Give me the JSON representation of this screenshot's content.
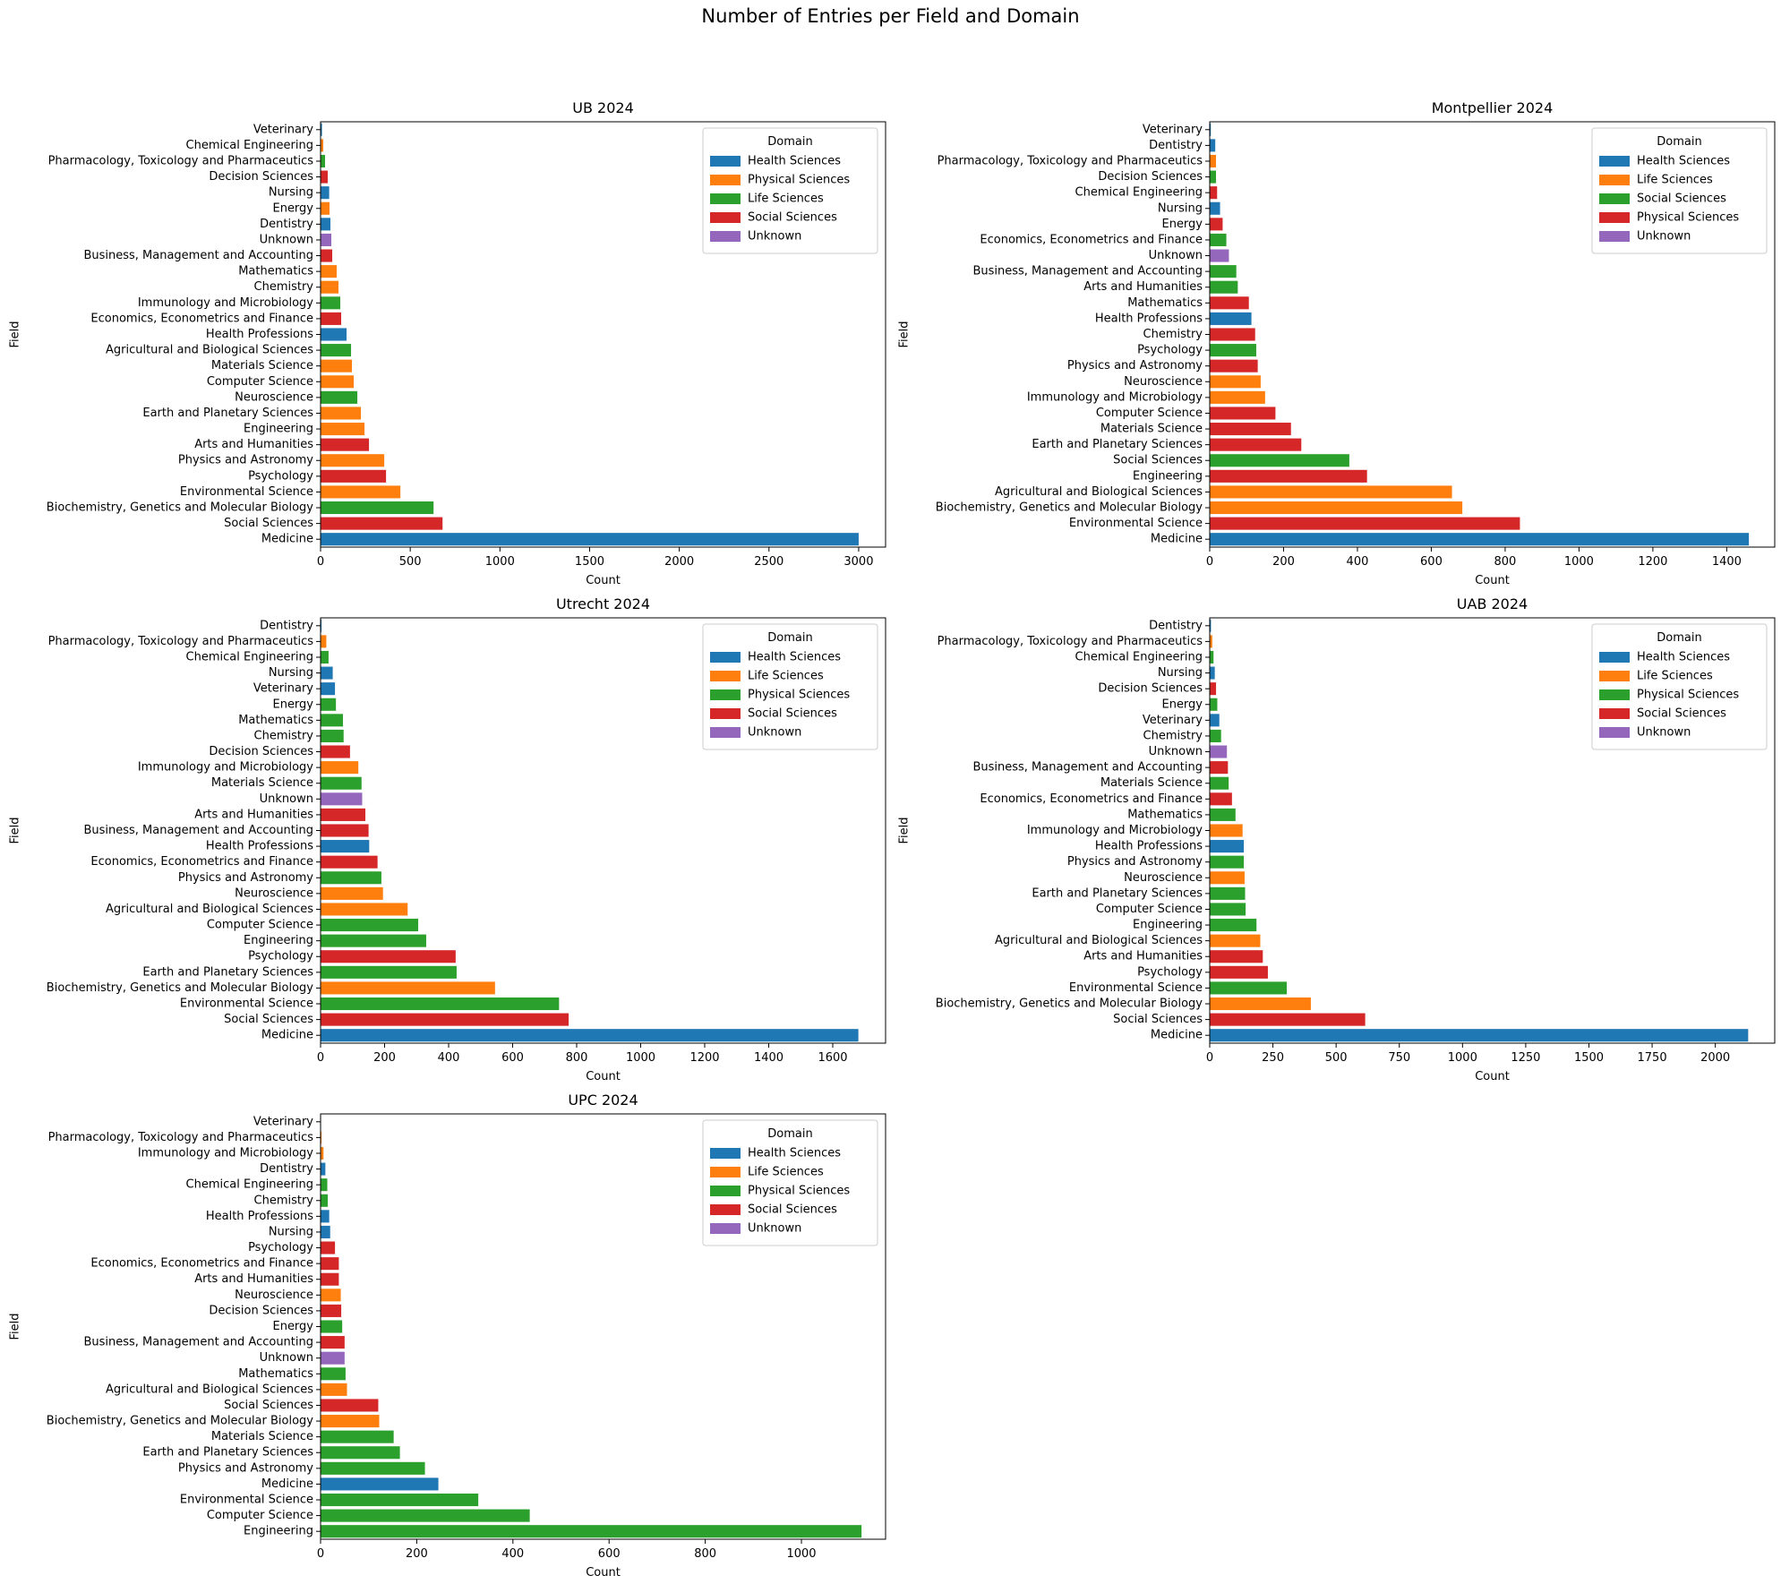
{
  "suptitle": "Number of Entries per Field and Domain",
  "domain_colors": {
    "Health Sciences": "#1f77b4",
    "Physical Sciences": "#ff7f0e",
    "Life Sciences": "#2ca02c",
    "Social Sciences": "#d62728",
    "Unknown": "#9467bd"
  },
  "colors_by_chart": [
    {
      "Health Sciences": "#1f77b4",
      "Physical Sciences": "#ff7f0e",
      "Life Sciences": "#2ca02c",
      "Social Sciences": "#d62728",
      "Unknown": "#9467bd"
    },
    {
      "Health Sciences": "#1f77b4",
      "Life Sciences": "#ff7f0e",
      "Social Sciences": "#2ca02c",
      "Physical Sciences": "#d62728",
      "Unknown": "#9467bd"
    },
    {
      "Health Sciences": "#1f77b4",
      "Life Sciences": "#ff7f0e",
      "Physical Sciences": "#2ca02c",
      "Social Sciences": "#d62728",
      "Unknown": "#9467bd"
    },
    {
      "Health Sciences": "#1f77b4",
      "Life Sciences": "#ff7f0e",
      "Physical Sciences": "#2ca02c",
      "Social Sciences": "#d62728",
      "Unknown": "#9467bd"
    },
    {
      "Health Sciences": "#1f77b4",
      "Life Sciences": "#ff7f0e",
      "Physical Sciences": "#2ca02c",
      "Social Sciences": "#d62728",
      "Unknown": "#9467bd"
    }
  ],
  "chart_data": [
    {
      "type": "bar",
      "orientation": "horizontal",
      "title": "UB 2024",
      "xlabel": "Count",
      "ylabel": "Field",
      "xlim": [
        0,
        3150
      ],
      "xticks": [
        0,
        500,
        1000,
        1500,
        2000,
        2500,
        3000
      ],
      "legend_title": "Domain",
      "legend_placement": "top-right",
      "legend": [
        "Health Sciences",
        "Physical Sciences",
        "Life Sciences",
        "Social Sciences",
        "Unknown"
      ],
      "categories": [
        "Veterinary",
        "Chemical Engineering",
        "Pharmacology, Toxicology and Pharmaceutics",
        "Decision Sciences",
        "Nursing",
        "Energy",
        "Dentistry",
        "Unknown",
        "Business, Management and Accounting",
        "Mathematics",
        "Chemistry",
        "Immunology and Microbiology",
        "Economics, Econometrics and Finance",
        "Health Professions",
        "Agricultural and Biological Sciences",
        "Materials Science",
        "Computer Science",
        "Neuroscience",
        "Earth and Planetary Sciences",
        "Engineering",
        "Arts and Humanities",
        "Physics and Astronomy",
        "Psychology",
        "Environmental Science",
        "Biochemistry, Genetics and Molecular Biology",
        "Social Sciences",
        "Medicine"
      ],
      "values": [
        8,
        15,
        25,
        40,
        48,
        50,
        55,
        60,
        65,
        90,
        100,
        110,
        115,
        145,
        170,
        175,
        185,
        205,
        225,
        245,
        270,
        355,
        365,
        445,
        630,
        680,
        3000
      ],
      "domains": [
        "Health Sciences",
        "Physical Sciences",
        "Life Sciences",
        "Social Sciences",
        "Health Sciences",
        "Physical Sciences",
        "Health Sciences",
        "Unknown",
        "Social Sciences",
        "Physical Sciences",
        "Physical Sciences",
        "Life Sciences",
        "Social Sciences",
        "Health Sciences",
        "Life Sciences",
        "Physical Sciences",
        "Physical Sciences",
        "Life Sciences",
        "Physical Sciences",
        "Physical Sciences",
        "Social Sciences",
        "Physical Sciences",
        "Social Sciences",
        "Physical Sciences",
        "Life Sciences",
        "Social Sciences",
        "Health Sciences"
      ]
    },
    {
      "type": "bar",
      "orientation": "horizontal",
      "title": "Montpellier 2024",
      "xlabel": "Count",
      "ylabel": "Field",
      "xlim": [
        0,
        1530
      ],
      "xticks": [
        0,
        200,
        400,
        600,
        800,
        1000,
        1200,
        1400
      ],
      "legend_title": "Domain",
      "legend_placement": "top-right",
      "legend": [
        "Health Sciences",
        "Life Sciences",
        "Social Sciences",
        "Physical Sciences",
        "Unknown"
      ],
      "categories": [
        "Veterinary",
        "Dentistry",
        "Pharmacology, Toxicology and Pharmaceutics",
        "Decision Sciences",
        "Chemical Engineering",
        "Nursing",
        "Energy",
        "Economics, Econometrics and Finance",
        "Unknown",
        "Business, Management and Accounting",
        "Arts and Humanities",
        "Mathematics",
        "Health Professions",
        "Chemistry",
        "Psychology",
        "Physics and Astronomy",
        "Neuroscience",
        "Immunology and Microbiology",
        "Computer Science",
        "Materials Science",
        "Earth and Planetary Sciences",
        "Social Sciences",
        "Engineering",
        "Agricultural and Biological Sciences",
        "Biochemistry, Genetics and Molecular Biology",
        "Environmental Science",
        "Medicine"
      ],
      "values": [
        3,
        15,
        17,
        17,
        20,
        28,
        35,
        45,
        52,
        72,
        76,
        106,
        113,
        123,
        126,
        130,
        138,
        150,
        178,
        220,
        248,
        378,
        426,
        656,
        684,
        840,
        1460
      ],
      "domains": [
        "Health Sciences",
        "Health Sciences",
        "Life Sciences",
        "Social Sciences",
        "Physical Sciences",
        "Health Sciences",
        "Physical Sciences",
        "Social Sciences",
        "Unknown",
        "Social Sciences",
        "Social Sciences",
        "Physical Sciences",
        "Health Sciences",
        "Physical Sciences",
        "Social Sciences",
        "Physical Sciences",
        "Life Sciences",
        "Life Sciences",
        "Physical Sciences",
        "Physical Sciences",
        "Physical Sciences",
        "Social Sciences",
        "Physical Sciences",
        "Life Sciences",
        "Life Sciences",
        "Physical Sciences",
        "Health Sciences"
      ]
    },
    {
      "type": "bar",
      "orientation": "horizontal",
      "title": "Utrecht 2024",
      "xlabel": "Count",
      "ylabel": "Field",
      "xlim": [
        0,
        1765
      ],
      "xticks": [
        0,
        200,
        400,
        600,
        800,
        1000,
        1200,
        1400,
        1600
      ],
      "legend_title": "Domain",
      "legend_placement": "top-right",
      "legend": [
        "Health Sciences",
        "Life Sciences",
        "Physical Sciences",
        "Social Sciences",
        "Unknown"
      ],
      "categories": [
        "Dentistry",
        "Pharmacology, Toxicology and Pharmaceutics",
        "Chemical Engineering",
        "Nursing",
        "Veterinary",
        "Energy",
        "Mathematics",
        "Chemistry",
        "Decision Sciences",
        "Immunology and Microbiology",
        "Materials Science",
        "Unknown",
        "Arts and Humanities",
        "Business, Management and Accounting",
        "Health Professions",
        "Economics, Econometrics and Finance",
        "Physics and Astronomy",
        "Neuroscience",
        "Agricultural and Biological Sciences",
        "Computer Science",
        "Engineering",
        "Psychology",
        "Earth and Planetary Sciences",
        "Biochemistry, Genetics and Molecular Biology",
        "Environmental Science",
        "Social Sciences",
        "Medicine"
      ],
      "values": [
        3,
        18,
        25,
        38,
        45,
        48,
        70,
        72,
        92,
        118,
        128,
        130,
        140,
        150,
        152,
        178,
        190,
        195,
        272,
        305,
        330,
        422,
        425,
        545,
        745,
        775,
        1680
      ],
      "domains": [
        "Health Sciences",
        "Life Sciences",
        "Physical Sciences",
        "Health Sciences",
        "Health Sciences",
        "Physical Sciences",
        "Physical Sciences",
        "Physical Sciences",
        "Social Sciences",
        "Life Sciences",
        "Physical Sciences",
        "Unknown",
        "Social Sciences",
        "Social Sciences",
        "Health Sciences",
        "Social Sciences",
        "Physical Sciences",
        "Life Sciences",
        "Life Sciences",
        "Physical Sciences",
        "Physical Sciences",
        "Social Sciences",
        "Physical Sciences",
        "Life Sciences",
        "Physical Sciences",
        "Social Sciences",
        "Health Sciences"
      ]
    },
    {
      "type": "bar",
      "orientation": "horizontal",
      "title": "UAB 2024",
      "xlabel": "Count",
      "ylabel": "Field",
      "xlim": [
        0,
        2235
      ],
      "xticks": [
        0,
        250,
        500,
        750,
        1000,
        1250,
        1500,
        1750,
        2000
      ],
      "legend_title": "Domain",
      "legend_placement": "top-right",
      "legend": [
        "Health Sciences",
        "Life Sciences",
        "Physical Sciences",
        "Social Sciences",
        "Unknown"
      ],
      "categories": [
        "Dentistry",
        "Pharmacology, Toxicology and Pharmaceutics",
        "Chemical Engineering",
        "Nursing",
        "Decision Sciences",
        "Energy",
        "Veterinary",
        "Chemistry",
        "Unknown",
        "Business, Management and Accounting",
        "Materials Science",
        "Economics, Econometrics and Finance",
        "Mathematics",
        "Immunology and Microbiology",
        "Health Professions",
        "Physics and Astronomy",
        "Neuroscience",
        "Earth and Planetary Sciences",
        "Computer Science",
        "Engineering",
        "Agricultural and Biological Sciences",
        "Arts and Humanities",
        "Psychology",
        "Environmental Science",
        "Biochemistry, Genetics and Molecular Biology",
        "Social Sciences",
        "Medicine"
      ],
      "values": [
        5,
        10,
        15,
        20,
        25,
        30,
        38,
        45,
        68,
        72,
        75,
        88,
        102,
        130,
        135,
        135,
        138,
        140,
        142,
        185,
        200,
        210,
        230,
        305,
        400,
        615,
        2130
      ],
      "domains": [
        "Health Sciences",
        "Life Sciences",
        "Physical Sciences",
        "Health Sciences",
        "Social Sciences",
        "Physical Sciences",
        "Health Sciences",
        "Physical Sciences",
        "Unknown",
        "Social Sciences",
        "Physical Sciences",
        "Social Sciences",
        "Physical Sciences",
        "Life Sciences",
        "Health Sciences",
        "Physical Sciences",
        "Life Sciences",
        "Physical Sciences",
        "Physical Sciences",
        "Physical Sciences",
        "Life Sciences",
        "Social Sciences",
        "Social Sciences",
        "Physical Sciences",
        "Life Sciences",
        "Social Sciences",
        "Health Sciences"
      ]
    },
    {
      "type": "bar",
      "orientation": "horizontal",
      "title": "UPC 2024",
      "xlabel": "Count",
      "ylabel": "Field",
      "xlim": [
        0,
        1175
      ],
      "xticks": [
        0,
        200,
        400,
        600,
        800,
        1000
      ],
      "legend_title": "Domain",
      "legend_placement": "top-right",
      "legend": [
        "Health Sciences",
        "Life Sciences",
        "Physical Sciences",
        "Social Sciences",
        "Unknown"
      ],
      "categories": [
        "Veterinary",
        "Pharmacology, Toxicology and Pharmaceutics",
        "Immunology and Microbiology",
        "Dentistry",
        "Chemical Engineering",
        "Chemistry",
        "Health Professions",
        "Nursing",
        "Psychology",
        "Economics, Econometrics and Finance",
        "Arts and Humanities",
        "Neuroscience",
        "Decision Sciences",
        "Energy",
        "Business, Management and Accounting",
        "Unknown",
        "Mathematics",
        "Agricultural and Biological Sciences",
        "Social Sciences",
        "Biochemistry, Genetics and Molecular Biology",
        "Materials Science",
        "Earth and Planetary Sciences",
        "Physics and Astronomy",
        "Medicine",
        "Environmental Science",
        "Computer Science",
        "Engineering"
      ],
      "values": [
        1,
        2,
        6,
        10,
        14,
        15,
        18,
        20,
        30,
        38,
        38,
        42,
        43,
        45,
        50,
        50,
        52,
        55,
        120,
        122,
        152,
        165,
        217,
        245,
        328,
        435,
        1125
      ],
      "domains": [
        "Health Sciences",
        "Life Sciences",
        "Life Sciences",
        "Health Sciences",
        "Physical Sciences",
        "Physical Sciences",
        "Health Sciences",
        "Health Sciences",
        "Social Sciences",
        "Social Sciences",
        "Social Sciences",
        "Life Sciences",
        "Social Sciences",
        "Physical Sciences",
        "Social Sciences",
        "Unknown",
        "Physical Sciences",
        "Life Sciences",
        "Social Sciences",
        "Life Sciences",
        "Physical Sciences",
        "Physical Sciences",
        "Physical Sciences",
        "Health Sciences",
        "Physical Sciences",
        "Physical Sciences",
        "Physical Sciences"
      ]
    }
  ]
}
